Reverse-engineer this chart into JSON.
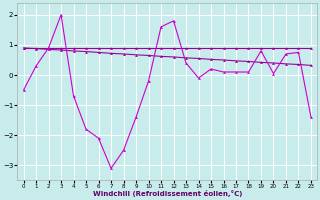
{
  "xlabel": "Windchill (Refroidissement éolien,°C)",
  "background_color": "#c8ecec",
  "plot_bg_color": "#c8ecec",
  "grid_color": "#ffffff",
  "line_color1": "#990099",
  "line_color2": "#cc00cc",
  "ylim": [
    -3.5,
    2.4
  ],
  "xlim": [
    -0.5,
    23.5
  ],
  "xticks": [
    0,
    1,
    2,
    3,
    4,
    5,
    6,
    7,
    8,
    9,
    10,
    11,
    12,
    13,
    14,
    15,
    16,
    17,
    18,
    19,
    20,
    21,
    22,
    23
  ],
  "yticks": [
    -3,
    -2,
    -1,
    0,
    1,
    2
  ],
  "series1_x": [
    0,
    1,
    2,
    3,
    4,
    5,
    6,
    7,
    8,
    9,
    10,
    11,
    12,
    13,
    14,
    15,
    16,
    17,
    18,
    19,
    20,
    21,
    22,
    23
  ],
  "series1_y": [
    0.9,
    0.88,
    0.85,
    0.83,
    0.8,
    0.78,
    0.75,
    0.72,
    0.7,
    0.67,
    0.65,
    0.62,
    0.6,
    0.57,
    0.55,
    0.52,
    0.5,
    0.47,
    0.45,
    0.42,
    0.4,
    0.37,
    0.35,
    0.32
  ],
  "series2_x": [
    0,
    1,
    2,
    3,
    4,
    5,
    6,
    7,
    8,
    9,
    10,
    11,
    12,
    13,
    14,
    15,
    16,
    17,
    18,
    19,
    20,
    21,
    22,
    23
  ],
  "series2_y": [
    -0.5,
    0.3,
    0.9,
    2.0,
    -0.7,
    -1.8,
    -2.1,
    -3.1,
    -2.5,
    -1.4,
    -0.2,
    1.6,
    1.8,
    0.4,
    -0.1,
    0.2,
    0.1,
    0.1,
    0.1,
    0.8,
    0.05,
    0.7,
    0.75,
    -1.4
  ],
  "series3_x": [
    0,
    1,
    2,
    3,
    4,
    5,
    6,
    7,
    8,
    9,
    10,
    11,
    12,
    13,
    14,
    15,
    16,
    17,
    18,
    19,
    20,
    21,
    22,
    23
  ],
  "series3_y": [
    0.9,
    0.9,
    0.9,
    0.9,
    0.9,
    0.9,
    0.9,
    0.9,
    0.9,
    0.9,
    0.9,
    0.9,
    0.9,
    0.9,
    0.9,
    0.9,
    0.9,
    0.9,
    0.9,
    0.9,
    0.9,
    0.9,
    0.9,
    0.9
  ]
}
